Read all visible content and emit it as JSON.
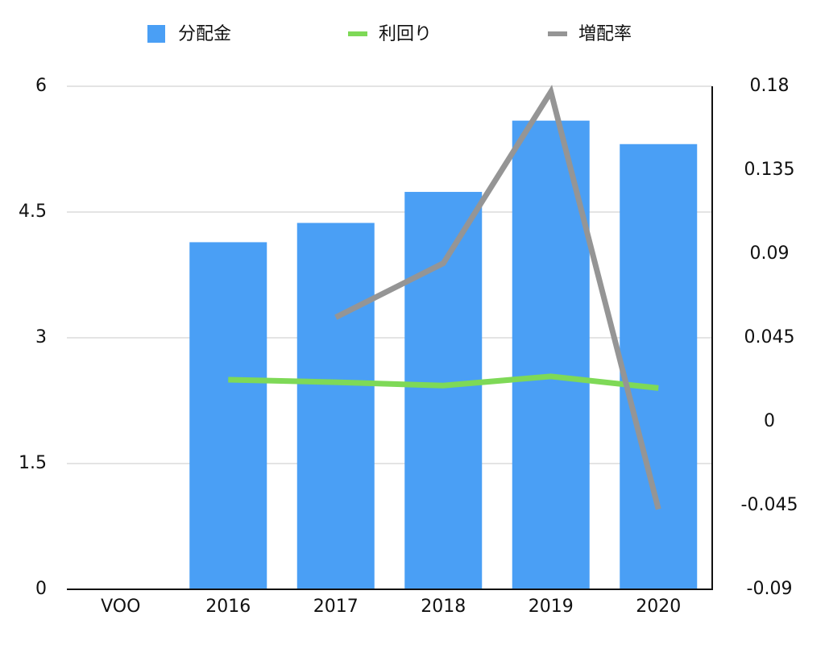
{
  "chart_data": {
    "type": "bar",
    "categories": [
      "VOO",
      "2016",
      "2017",
      "2018",
      "2019",
      "2020"
    ],
    "series": [
      {
        "name": "分配金",
        "type": "bar",
        "color": "#4a9ff5",
        "values": [
          null,
          4.14,
          4.37,
          4.74,
          5.59,
          5.31
        ]
      },
      {
        "name": "利回り",
        "type": "line",
        "color": "#7ed957",
        "values": [
          null,
          2.5,
          2.47,
          2.43,
          2.54,
          2.4
        ]
      },
      {
        "name": "増配率",
        "type": "line",
        "color": "#959595",
        "axis": "y2",
        "values": [
          null,
          null,
          0.056,
          0.085,
          0.177,
          -0.047
        ]
      }
    ],
    "ylim": [
      0,
      6
    ],
    "yticks": [
      0,
      1.5,
      3,
      4.5,
      6
    ],
    "y2lim": [
      -0.09,
      0.18
    ],
    "y2ticks": [
      -0.09,
      -0.045,
      0,
      0.045,
      0.09,
      0.135,
      0.18
    ],
    "grid": true,
    "legend": "top"
  }
}
